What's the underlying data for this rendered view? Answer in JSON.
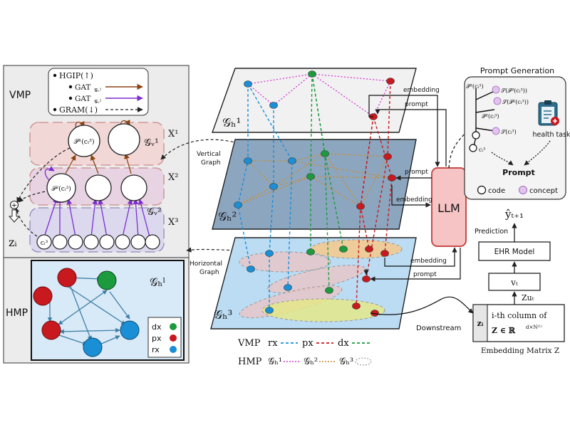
{
  "colors": {
    "rx": "#1a8fd6",
    "px": "#c8191e",
    "dx": "#1c9a3e",
    "hmp_legend": "#d43ad4",
    "g2_legend": "#c98c2a",
    "gat1": "#8b4513",
    "gat2": "#7b2fd0",
    "llm_fill": "#f6c4c4",
    "llm_stroke": "#c94b4b"
  },
  "vmp_panel": {
    "title": "VMP",
    "legend": {
      "hgip": "HGIP(↑)",
      "gat1": "GAT",
      "gat1_sub": "𝒢ᵥ¹",
      "gat2": "GAT",
      "gat2_sub": "𝒢ᵥ²",
      "gram": "GRAM(↓)"
    },
    "level_labels": [
      "X¹",
      "X²",
      "X³"
    ],
    "graph_labels": [
      "𝒢ᵥ¹",
      "𝒢ᵥ²"
    ],
    "node_p1": "𝒫¹(cᵢ³)",
    "node_p2": "𝒫²(cᵢ³)",
    "node_c": "cᵢ³",
    "z_label": "zᵢ",
    "plus": "+"
  },
  "hmp_panel": {
    "title": "HMP",
    "graph_label": "𝒢ₕˡ",
    "legend": [
      "dx",
      "px",
      "rx"
    ]
  },
  "connectors": {
    "vertical_graph": [
      "Vertical",
      "Graph"
    ],
    "horizontal_graph": [
      "Horizontal",
      "Graph"
    ]
  },
  "planes": [
    "𝒢ₕ¹",
    "𝒢ₕ²",
    "𝒢ₕ³"
  ],
  "arrows": {
    "embedding": "embedding",
    "prompt": "prompt",
    "downstream": "Downstream"
  },
  "llm": "LLM",
  "prompt_generation": {
    "title": "Prompt Generation",
    "items": [
      "𝒫³(cᵢ³)",
      "𝒮(𝒫³(cᵢ³))",
      "𝒮(𝒫²(cᵢ³))",
      "𝒫²(cᵢ³)",
      "𝒮(cᵢ³)",
      "cᵢ³"
    ],
    "health_task": "health task",
    "prompt": "Prompt",
    "legend_code": "code",
    "legend_concept": "concept"
  },
  "right_chain": {
    "y_hat": "ŷₜ₊₁",
    "prediction": "Prediction",
    "ehr_model": "EHR Model",
    "v_t": "vₜ",
    "zu_t": "Zuₜ",
    "z_i": "zᵢ",
    "embedding_line1": "i-th column of",
    "embedding_line2": "Z ∈ ℝ",
    "embedding_sup": "d×N⁽ᴸ⁾",
    "embedding_caption": "Embedding Matrix Z"
  },
  "bottom_legend": {
    "vmp_label": "VMP",
    "vmp_items": [
      "rx",
      "px",
      "dx"
    ],
    "hmp_label": "HMP",
    "hmp_items": [
      "𝒢ₕ¹",
      "𝒢ₕ²",
      "𝒢ₕ³"
    ]
  }
}
